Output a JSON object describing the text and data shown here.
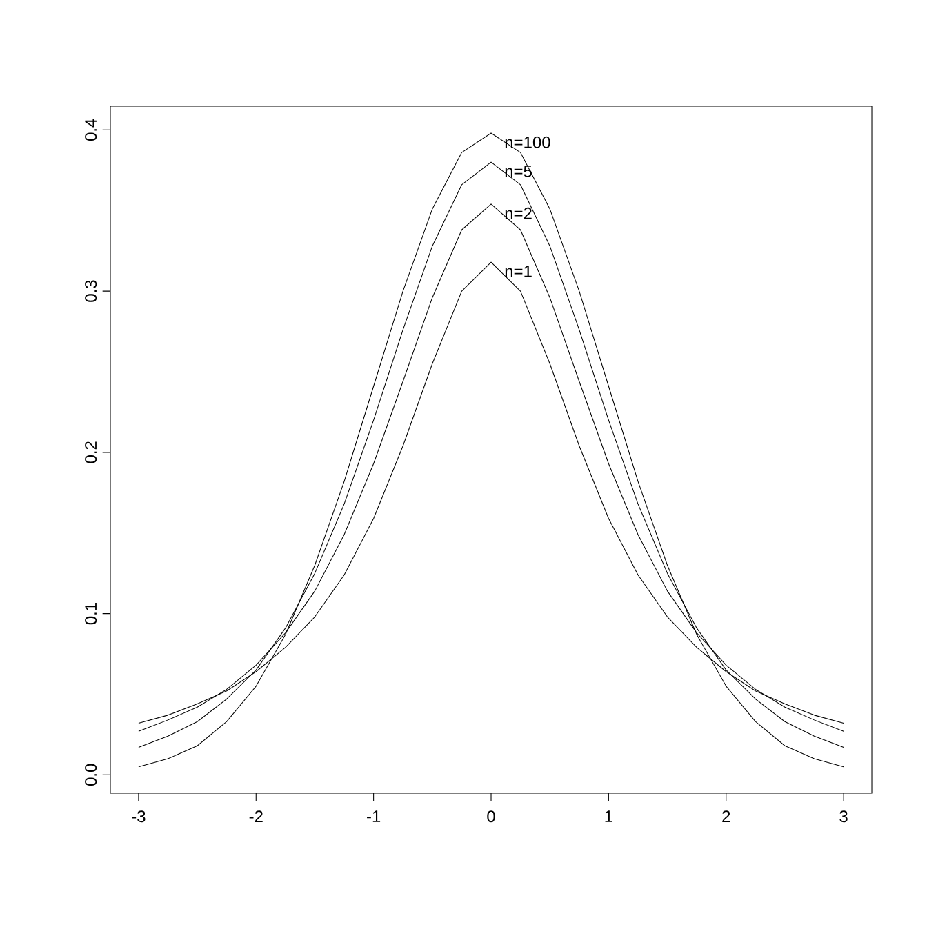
{
  "chart_data": {
    "type": "line",
    "x": [
      -3,
      -2.75,
      -2.5,
      -2.25,
      -2,
      -1.75,
      -1.5,
      -1.25,
      -1,
      -0.75,
      -0.5,
      -0.25,
      0,
      0.25,
      0.5,
      0.75,
      1,
      1.25,
      1.5,
      1.75,
      2,
      2.25,
      2.5,
      2.75,
      3
    ],
    "series": [
      {
        "name": "n=1",
        "color": "#000000",
        "values": [
          0.032,
          0.037,
          0.044,
          0.052,
          0.064,
          0.079,
          0.098,
          0.124,
          0.159,
          0.204,
          0.255,
          0.3,
          0.318,
          0.3,
          0.255,
          0.204,
          0.159,
          0.124,
          0.098,
          0.079,
          0.064,
          0.052,
          0.044,
          0.037,
          0.032
        ]
      },
      {
        "name": "n=2",
        "color": "#000000",
        "values": [
          0.027,
          0.034,
          0.042,
          0.053,
          0.068,
          0.088,
          0.114,
          0.149,
          0.193,
          0.244,
          0.296,
          0.338,
          0.354,
          0.338,
          0.296,
          0.244,
          0.193,
          0.149,
          0.114,
          0.088,
          0.068,
          0.053,
          0.042,
          0.034,
          0.027
        ]
      },
      {
        "name": "n=5",
        "color": "#000000",
        "values": [
          0.017,
          0.024,
          0.033,
          0.047,
          0.065,
          0.091,
          0.125,
          0.168,
          0.22,
          0.276,
          0.328,
          0.366,
          0.38,
          0.366,
          0.328,
          0.276,
          0.22,
          0.168,
          0.125,
          0.091,
          0.065,
          0.047,
          0.033,
          0.024,
          0.017
        ]
      },
      {
        "name": "n=100",
        "color": "#000000",
        "values": [
          0.005,
          0.01,
          0.018,
          0.033,
          0.055,
          0.087,
          0.13,
          0.182,
          0.241,
          0.3,
          0.351,
          0.386,
          0.398,
          0.386,
          0.351,
          0.3,
          0.241,
          0.182,
          0.13,
          0.087,
          0.055,
          0.033,
          0.018,
          0.01,
          0.005
        ]
      }
    ],
    "xlim": [
      -3.24,
      3.24
    ],
    "ylim": [
      -0.0114,
      0.4147
    ],
    "xticks": [
      -3,
      -2,
      -1,
      0,
      1,
      2,
      3
    ],
    "yticks": [
      {
        "value": 0,
        "label": "0.0"
      },
      {
        "value": 0.1,
        "label": "0.1"
      },
      {
        "value": 0.2,
        "label": "0.2"
      },
      {
        "value": 0.3,
        "label": "0.3"
      },
      {
        "value": 0.4,
        "label": "0.4"
      }
    ],
    "grid": false,
    "marker": "none",
    "line_style": "solid"
  }
}
